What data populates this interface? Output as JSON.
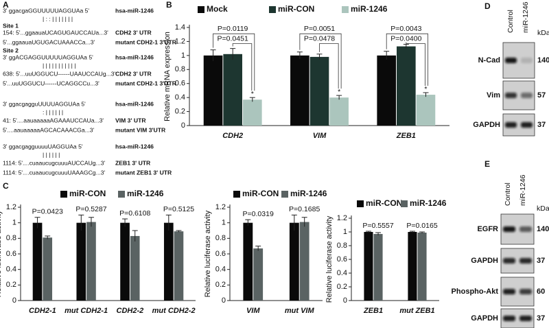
{
  "panel_a": {
    "label": "A",
    "sites": [
      "Site 1",
      "Site 2"
    ],
    "rows": [
      {
        "sequence": "3'   ggacgaGGUUUUUAGGUAa   5'",
        "target": "hsa-miR-1246"
      },
      {
        "sequence": "|  :  :  |  |  |  |  |  |  |"
      },
      {
        "sequence": "154: 5'...ggaauaUCAGUGAUCCAUa...3'",
        "target": "CDH2 3' UTR"
      },
      {
        "sequence": "5'...ggaauaUGUGACUAAACCa...3'",
        "target": "mutant CDH2-1 3'UTR"
      },
      {
        "sequence": "3' ggACGAGGUUUUUAGGUAa 5'",
        "target": "hsa-miR-1246"
      },
      {
        "sequence": "|  |  |  |        |  |  |  |  |  |  |"
      },
      {
        "sequence": "638: 5'...uuUGGUCU------UAAUCCAUg...3'",
        "target": "CDH2 3' UTR"
      },
      {
        "sequence": "5'...uuUGGUCU------UCAGGCCu...3'",
        "target": "mutant CDH2-1 3'UTR"
      },
      {
        "sequence": "3'   ggacgagguUUUUAGGUAa   5'",
        "target": "hsa-miR-1246"
      },
      {
        "sequence": ":  |  |  |  |  |  |"
      },
      {
        "sequence": "41: 5'....aauaaaaaAGAAAUCCAUa...3'",
        "target": "VIM 3' UTR"
      },
      {
        "sequence": "5'....aauaaaaaAGCACAAACGa...3'",
        "target": "mutant VIM 3'UTR"
      },
      {
        "sequence": "3'   ggacgagguuuuUAGGUAa   5'",
        "target": "hsa-miR-1246"
      },
      {
        "sequence": "|  |  |  |  |  |"
      },
      {
        "sequence": "1114: 5'....cuaaucugcuuuAUCCAUg...3'",
        "target": "ZEB1 3' UTR"
      },
      {
        "sequence": "1114: 5'....cuaaucugcuuuUAAAGCg...3'",
        "target": "mutant ZEB1 3' UTR"
      }
    ]
  },
  "chart_data": [
    {
      "type": "bar",
      "label": "B",
      "ylabel": "Relative mRNA expression",
      "categories": [
        "CDH2",
        "VIM",
        "ZEB1"
      ],
      "series": [
        {
          "name": "Mock",
          "color": "#0a0a0a",
          "values": [
            1,
            1,
            1
          ],
          "errors": [
            0.08,
            0.05,
            0.06
          ]
        },
        {
          "name": "miR-CON",
          "color": "#1d3630",
          "values": [
            1.02,
            0.98,
            1.13
          ],
          "errors": [
            0.08,
            0.04,
            0.03
          ]
        },
        {
          "name": "miR-1246",
          "color": "#abc5bd",
          "values": [
            0.37,
            0.4,
            0.44
          ],
          "errors": [
            0.03,
            0.03,
            0.03
          ]
        }
      ],
      "ylim": [
        0,
        1.4
      ],
      "yticks": [
        0,
        0.2,
        0.4,
        0.6,
        0.8,
        1,
        1.2,
        1.4
      ],
      "annotations": [
        "P=0.0119",
        "P=0.0451",
        "P=0.0051",
        "P=0.0478",
        "P=0.0043",
        "P=0.0400"
      ],
      "significance": [
        "*",
        "*",
        "*"
      ]
    },
    {
      "type": "bar",
      "label": "C",
      "ylabel": "Relative luciferase activity",
      "categories": [
        "CDH2-1",
        "mut CDH2-1",
        "CDH2-2",
        "mut CDH2-2"
      ],
      "series": [
        {
          "name": "miR-CON",
          "color": "#0a0a0a",
          "values": [
            1,
            1,
            1,
            1
          ],
          "errors": [
            0.07,
            0.1,
            0.05,
            0.1
          ]
        },
        {
          "name": "miR-1246",
          "color": "#5a6363",
          "values": [
            0.81,
            1.01,
            0.83,
            0.89
          ],
          "errors": [
            0.02,
            0.06,
            0.07,
            0.01
          ]
        }
      ],
      "ylim": [
        0,
        1.2
      ],
      "yticks": [
        0,
        0.2,
        0.4,
        0.6,
        0.8,
        1,
        1.2
      ],
      "annotations": [
        "P=0.0423",
        "P=0.5287",
        "P=0.6108",
        "P=0.5125"
      ]
    },
    {
      "type": "bar",
      "ylabel": "Relative luciferase activity",
      "categories": [
        "VIM",
        "mut VIM"
      ],
      "series": [
        {
          "name": "miR-CON",
          "color": "#0a0a0a",
          "values": [
            1,
            1
          ],
          "errors": [
            0.04,
            0.1
          ]
        },
        {
          "name": "miR-1246",
          "color": "#5a6363",
          "values": [
            0.67,
            1.01
          ],
          "errors": [
            0.03,
            0.06
          ]
        }
      ],
      "ylim": [
        0,
        1.2
      ],
      "yticks": [
        0,
        0.2,
        0.4,
        0.6,
        0.8,
        1,
        1.2
      ],
      "annotations": [
        "P=0.0319",
        "P=0.1685"
      ]
    },
    {
      "type": "bar",
      "ylabel": "Relative luciferase activity",
      "categories": [
        "ZEB1",
        "mut ZEB1"
      ],
      "series": [
        {
          "name": "miR-CON",
          "color": "#0a0a0a",
          "values": [
            1,
            1
          ],
          "errors": [
            0.01,
            0.01
          ]
        },
        {
          "name": "miR-1246",
          "color": "#5a6363",
          "values": [
            0.97,
            0.99
          ],
          "errors": [
            0.02,
            0.01
          ]
        }
      ],
      "ylim": [
        0,
        1.2
      ],
      "yticks": [
        0,
        0.2,
        0.4,
        0.6,
        0.8,
        1,
        1.2
      ],
      "annotations": [
        "P=0.5557",
        "P=0.0165"
      ]
    }
  ],
  "blots": [
    {
      "label": "D",
      "columns": [
        "Control",
        "miR-1246"
      ],
      "unit": "kDa",
      "rows": [
        {
          "name": "N-Cad",
          "kda": "140"
        },
        {
          "name": "Vim",
          "kda": "57"
        },
        {
          "name": "GAPDH",
          "kda": "37"
        }
      ]
    },
    {
      "label": "E",
      "columns": [
        "Control",
        "miR-1246"
      ],
      "unit": "kDa",
      "rows": [
        {
          "name": "EGFR",
          "kda": "140"
        },
        {
          "name": "GAPDH",
          "kda": "37"
        },
        {
          "name": "Phospho-Akt",
          "kda": "60"
        },
        {
          "name": "GAPDH",
          "kda": "37"
        }
      ]
    }
  ]
}
